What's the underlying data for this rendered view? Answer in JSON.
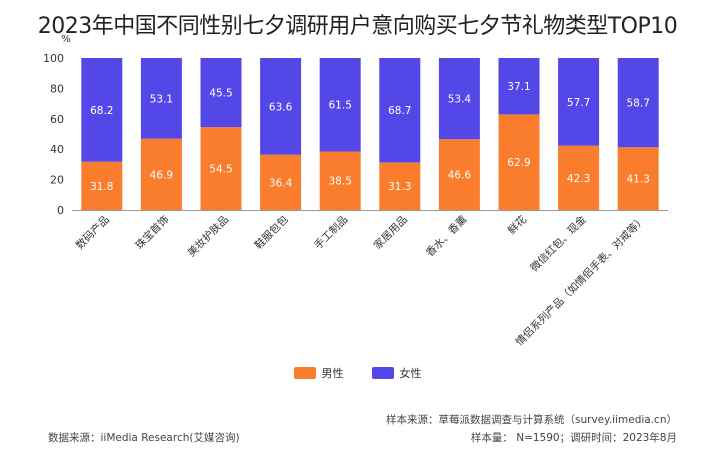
{
  "colors": {
    "male": "#f97d2c",
    "female": "#5447e8",
    "axis": "#999999",
    "text": "#333333"
  },
  "chart_data": {
    "type": "bar",
    "stacked": true,
    "title": "2023年中国不同性别七夕调研用户意向购买七夕节礼物类型TOP10",
    "ylabel": "%",
    "ylim": [
      0,
      100
    ],
    "yticks": [
      0,
      20,
      40,
      60,
      80,
      100
    ],
    "categories": [
      "数码产品",
      "珠宝首饰",
      "美妆护肤品",
      "鞋服包包",
      "手工制品",
      "家居用品",
      "香水、香薰",
      "鲜花",
      "微信红包、现金",
      "情侣系列产品（如情侣手表、对戒等）"
    ],
    "series": [
      {
        "name": "男性",
        "color": "#f97d2c",
        "values": [
          31.8,
          46.9,
          54.5,
          36.4,
          38.5,
          31.3,
          46.6,
          62.9,
          42.3,
          41.3
        ]
      },
      {
        "name": "女性",
        "color": "#5447e8",
        "values": [
          68.2,
          53.1,
          45.5,
          63.6,
          61.5,
          68.7,
          53.4,
          37.1,
          57.7,
          58.7
        ]
      }
    ],
    "legend": [
      "男性",
      "女性"
    ]
  },
  "footer": {
    "source": "数据来源：iiMedia Research(艾媒咨询)",
    "sample_source": "样本来源：草莓派数据调查与计算系统（survey.iimedia.cn）",
    "sample_info": "样本量： N=1590；调研时间：2023年8月"
  }
}
